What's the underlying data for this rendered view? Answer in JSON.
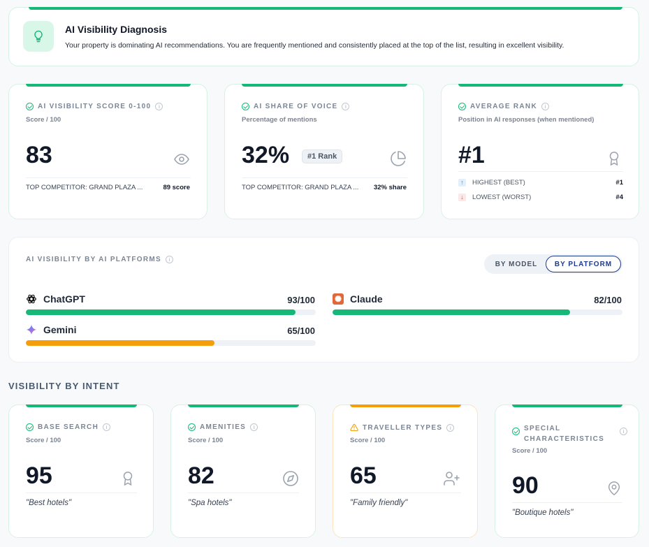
{
  "diagnosis": {
    "icon": "lightbulb-icon",
    "title": "AI Visibility Diagnosis",
    "text": "Your property is dominating AI recommendations. You are frequently mentioned and consistently placed at the top of the list, resulting in excellent visibility."
  },
  "metrics": {
    "score": {
      "title": "AI VISIBILITY SCORE 0-100",
      "subtitle": "Score / 100",
      "value": "83",
      "icon": "eye-icon",
      "competitor_label": "TOP COMPETITOR: GRAND PLAZA ...",
      "competitor_value": "89 score"
    },
    "share": {
      "title": "AI SHARE OF VOICE",
      "subtitle": "Percentage of mentions",
      "value": "32%",
      "badge": "#1 Rank",
      "icon": "pie-chart-icon",
      "competitor_label": "TOP COMPETITOR: GRAND PLAZA ...",
      "competitor_value": "32% share"
    },
    "rank": {
      "title": "AVERAGE RANK",
      "subtitle": "Position in AI responses (when mentioned)",
      "value": "#1",
      "icon": "award-icon",
      "highest_label": "HIGHEST (BEST)",
      "highest_value": "#1",
      "lowest_label": "LOWEST (WORST)",
      "lowest_value": "#4"
    }
  },
  "platforms": {
    "title": "AI VISIBILITY BY AI PLATFORMS",
    "toggle_model": "BY MODEL",
    "toggle_platform": "BY PLATFORM",
    "selected": "BY PLATFORM",
    "items": [
      {
        "name": "ChatGPT",
        "score_label": "93/100",
        "value": 93,
        "color": "#16b877",
        "icon": "openai-icon"
      },
      {
        "name": "Claude",
        "score_label": "82/100",
        "value": 82,
        "color": "#16b877",
        "icon": "claude-icon"
      },
      {
        "name": "Gemini",
        "score_label": "65/100",
        "value": 65,
        "color": "#f59e0b",
        "icon": "gemini-icon"
      }
    ]
  },
  "intent": {
    "title": "VISIBILITY BY INTENT",
    "cards": [
      {
        "title": "BASE SEARCH",
        "subtitle": "Score / 100",
        "value": "95",
        "example": "\"Best hotels\"",
        "status": "good",
        "icon": "award-icon"
      },
      {
        "title": "AMENITIES",
        "subtitle": "Score / 100",
        "value": "82",
        "example": "\"Spa hotels\"",
        "status": "good",
        "icon": "compass-icon"
      },
      {
        "title": "TRAVELLER TYPES",
        "subtitle": "Score / 100",
        "value": "65",
        "example": "\"Family friendly\"",
        "status": "warning",
        "icon": "user-plus-icon"
      },
      {
        "title_line1": "SPECIAL",
        "title_line2": "CHARACTERISTICS",
        "subtitle": "Score / 100",
        "value": "90",
        "example": "\"Boutique hotels\"",
        "status": "good",
        "icon": "map-pin-icon"
      }
    ]
  },
  "colors": {
    "accent_green": "#16b877",
    "warning_orange": "#f59e0b",
    "toggle_selected": "#1e3a8a"
  }
}
